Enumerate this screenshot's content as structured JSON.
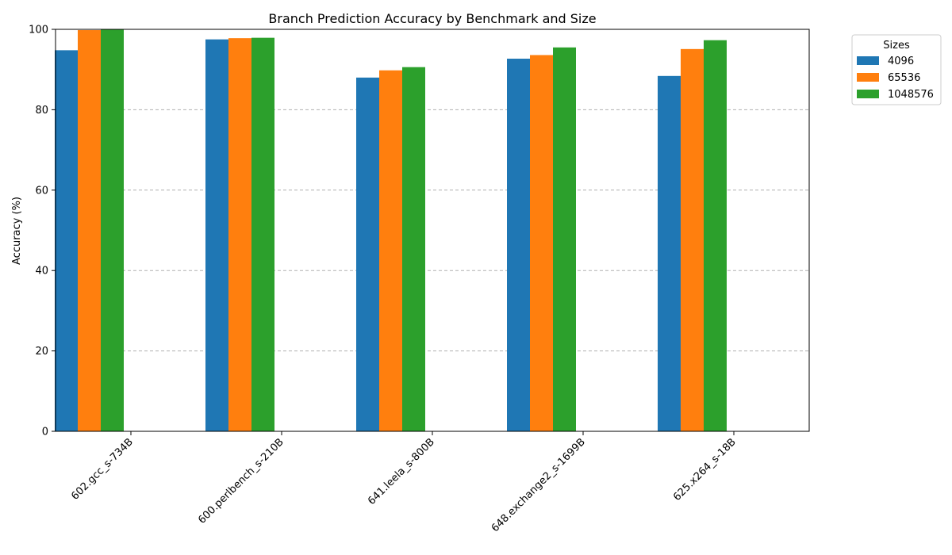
{
  "chart_data": {
    "type": "bar",
    "title": "Branch Prediction Accuracy by Benchmark and Size",
    "xlabel": "",
    "ylabel": "Accuracy (%)",
    "ylim": [
      0,
      100
    ],
    "yticks": [
      0,
      20,
      40,
      60,
      80,
      100
    ],
    "grid": "y, dashed",
    "legend_title": "Sizes",
    "legend_position": "outside top-right",
    "categories": [
      "602.gcc_s-734B",
      "600.perlbench_s-210B",
      "641.leela_s-800B",
      "648.exchange2_s-1699B",
      "625.x264_s-18B"
    ],
    "series": [
      {
        "name": "4096",
        "color": "#1f77b4",
        "values": [
          94.8,
          97.5,
          88.0,
          92.7,
          88.4
        ]
      },
      {
        "name": "65536",
        "color": "#ff7f0e",
        "values": [
          99.8,
          97.8,
          89.8,
          93.6,
          95.1
        ]
      },
      {
        "name": "1048576",
        "color": "#2ca02c",
        "values": [
          99.9,
          97.9,
          90.6,
          95.5,
          97.3
        ]
      }
    ]
  }
}
